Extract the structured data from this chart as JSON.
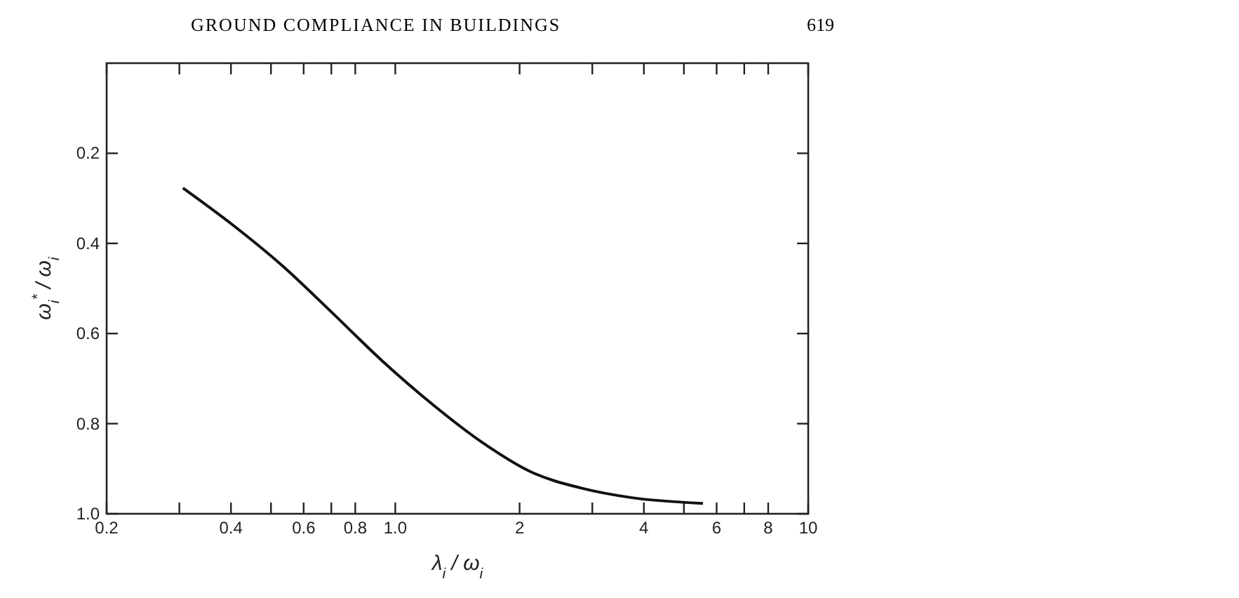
{
  "chart_data": {
    "type": "line",
    "annotations": [
      "GROUND COMPLIANCE IN BUILDINGS",
      "619"
    ],
    "xlabel": "λ$_{i}$ / ω$_{i}$",
    "ylabel": "ω$_{i}$$^{*}$ / ω$_{i}$",
    "log": "x",
    "grid": false,
    "marker": "none",
    "line_style": "solid",
    "xlim": [
      0.2,
      10
    ],
    "ylim": [
      1.0,
      0
    ],
    "xticks": [
      0.2,
      {
        "value": 0.3,
        "label": null
      },
      0.4,
      {
        "value": 0.5,
        "label": null
      },
      0.6,
      {
        "value": 0.7,
        "label": null
      },
      0.8,
      {
        "value": 1,
        "label": "1.0"
      },
      2,
      {
        "value": 3,
        "label": null
      },
      4,
      {
        "value": 5,
        "label": null
      },
      6,
      {
        "value": 7,
        "label": null
      },
      8,
      10
    ],
    "yticks": [
      0.2,
      0.4,
      0.6,
      0.8,
      {
        "value": 1,
        "label": "1.0"
      }
    ],
    "series": [
      {
        "color": "#111111",
        "x": [
          0.306,
          0.404,
          0.532,
          0.7,
          0.928,
          1.23,
          1.62,
          2.13,
          2.82,
          3.72,
          5.56
        ],
        "values": [
          0.277,
          0.359,
          0.449,
          0.552,
          0.66,
          0.757,
          0.841,
          0.907,
          0.943,
          0.964,
          0.977
        ]
      }
    ]
  }
}
